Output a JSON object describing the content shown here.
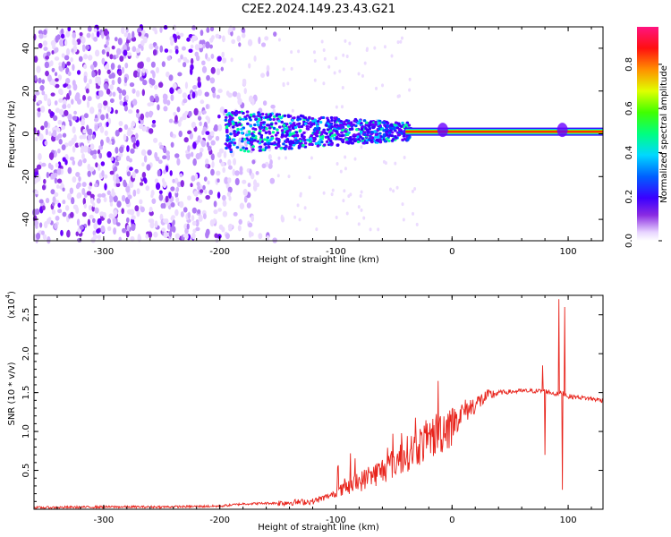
{
  "title": "C2E2.2024.149.23.43.G21",
  "colors": {
    "snr_line": "#e8231b",
    "axis": "#000000"
  },
  "chart_data": [
    {
      "type": "heatmap",
      "xlabel": "Height of straight line (km)",
      "ylabel": "Frequency (Hz)",
      "xlim": [
        -360,
        130
      ],
      "ylim": [
        -50,
        50
      ],
      "x_ticks": [
        -300,
        -200,
        -100,
        0,
        100
      ],
      "y_ticks": [
        -40,
        -20,
        0,
        20,
        40
      ],
      "colorbar": {
        "label": "Normalized spectral amplitude",
        "range": [
          0.0,
          1.0
        ],
        "ticks": [
          "0.0",
          "0.2",
          "0.4",
          "0.6",
          "0.8"
        ],
        "colormap": "rainbow (white-purple-blue-cyan-green-yellow-red-pink)"
      },
      "features": {
        "noise_region_x": [
          -360,
          -150
        ],
        "noisy_signal_x": [
          -190,
          -40
        ],
        "signal_center_hz": 1,
        "strong_signal_x": [
          -40,
          130
        ]
      }
    },
    {
      "type": "line",
      "xlabel": "Height of straight line (km)",
      "ylabel": "SNR (10 * v/v)",
      "y_scale_label": "(x10",
      "y_scale_exp": "4",
      "y_scale_close": ")",
      "xlim": [
        -360,
        130
      ],
      "ylim": [
        0,
        2.75
      ],
      "x_ticks": [
        -300,
        -200,
        -100,
        0,
        100
      ],
      "y_ticks": [
        "0.5",
        "1.0",
        "1.5",
        "2.0",
        "2.5"
      ],
      "series": [
        {
          "x": [
            -360,
            -300,
            -250,
            -200,
            -180,
            -150,
            -120,
            -100,
            -80,
            -60,
            -40,
            -20,
            -10,
            0,
            10,
            20,
            30,
            40,
            60,
            80,
            90,
            95,
            100,
            110,
            120,
            130
          ],
          "y": [
            0.02,
            0.03,
            0.03,
            0.04,
            0.07,
            0.08,
            0.1,
            0.2,
            0.35,
            0.5,
            0.7,
            0.9,
            1.0,
            1.12,
            1.25,
            1.35,
            1.45,
            1.5,
            1.52,
            1.52,
            1.48,
            1.5,
            1.45,
            1.44,
            1.42,
            1.4
          ]
        }
      ],
      "spikes": [
        {
          "x": -12,
          "y": 1.65
        },
        {
          "x": 78,
          "y": 1.85
        },
        {
          "x": 80,
          "y": 0.7
        },
        {
          "x": 92,
          "y": 2.7
        },
        {
          "x": 95,
          "y": 0.25
        },
        {
          "x": 97,
          "y": 2.6
        }
      ]
    }
  ]
}
